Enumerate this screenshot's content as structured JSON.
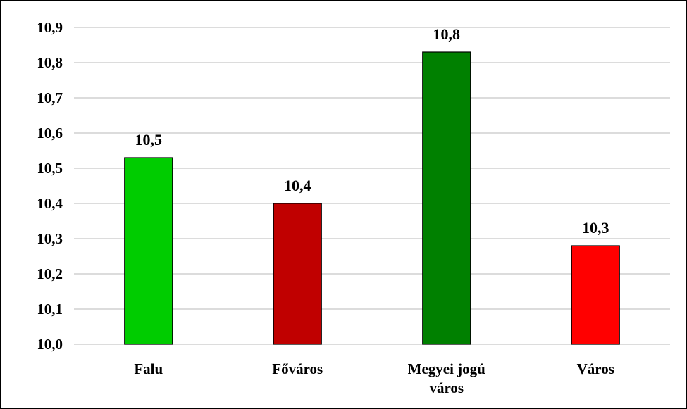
{
  "chart_data": {
    "type": "bar",
    "title": "",
    "xlabel": "",
    "ylabel": "",
    "ylim": [
      10.0,
      10.9
    ],
    "yticks": [
      10.0,
      10.1,
      10.2,
      10.3,
      10.4,
      10.5,
      10.6,
      10.7,
      10.8,
      10.9
    ],
    "ytick_labels": [
      "10,0",
      "10,1",
      "10,2",
      "10,3",
      "10,4",
      "10,5",
      "10,6",
      "10,7",
      "10,8",
      "10,9"
    ],
    "grid": true,
    "legend": "none",
    "categories": [
      [
        "Falu"
      ],
      [
        "Főváros"
      ],
      [
        "Megyei jogú",
        "város"
      ],
      [
        "Város"
      ]
    ],
    "values": [
      10.53,
      10.4,
      10.83,
      10.28
    ],
    "data_labels": [
      "10,5",
      "10,4",
      "10,8",
      "10,3"
    ],
    "colors": [
      "#00cc00",
      "#c00000",
      "#008000",
      "#ff0000"
    ]
  }
}
